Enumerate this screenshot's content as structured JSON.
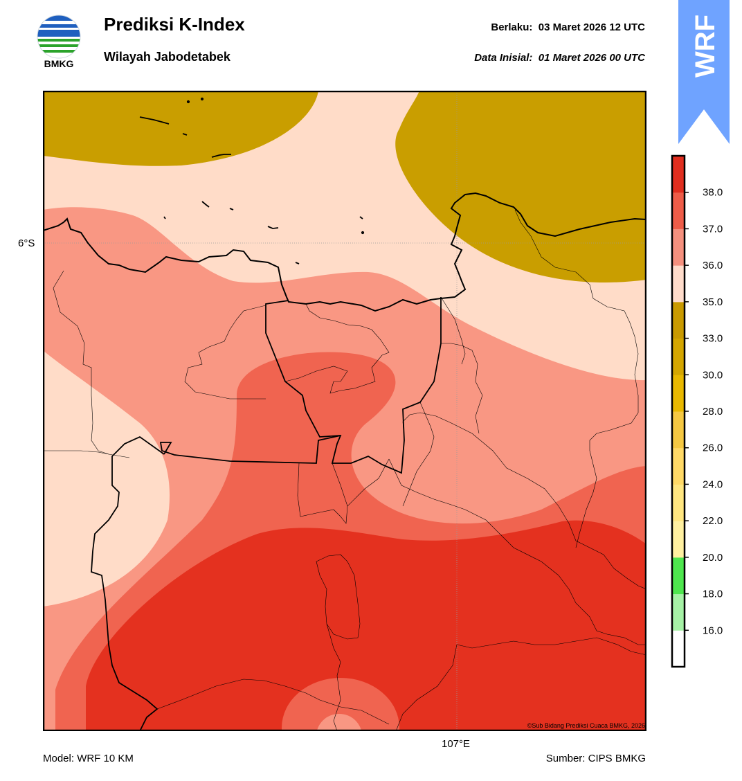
{
  "header": {
    "logo_text": "BMKG",
    "title": "Prediksi K-Index",
    "subtitle": "Wilayah Jabodetabek",
    "valid_label": "Berlaku:",
    "valid_value": "03 Maret 2026 12 UTC",
    "init_label": "Data Inisial:",
    "init_value": "01 Maret 2026 00 UTC",
    "badge_text": "WRF"
  },
  "map": {
    "lat_label": "6°S",
    "lon_label": "107°E",
    "copyright": "©Sub Bidang Prediksi Cuaca BMKG, 2026"
  },
  "footer": {
    "model": "Model: WRF 10 KM",
    "source": "Sumber: CIPS BMKG"
  },
  "legend": {
    "ticks": [
      "38.0",
      "37.0",
      "36.0",
      "35.0",
      "33.0",
      "30.0",
      "28.0",
      "26.0",
      "24.0",
      "22.0",
      "20.0",
      "18.0",
      "16.0"
    ],
    "colors_bottom_to_top": [
      "#ffffff",
      "#a6f2a6",
      "#4ee64e",
      "#fff0a0",
      "#ffe680",
      "#ffd966",
      "#f5c842",
      "#e8b800",
      "#d4a600",
      "#c99a00",
      "#ffdccb",
      "#f5907e",
      "#ee5c48",
      "#e02e1f"
    ]
  },
  "colors": {
    "k_lt35": "#c99e00",
    "k_35_36": "#ffdcc8",
    "k_36_37": "#f99783",
    "k_37_38": "#f06450",
    "k_gt38": "#e4311f",
    "badge": "#6fa3ff"
  }
}
